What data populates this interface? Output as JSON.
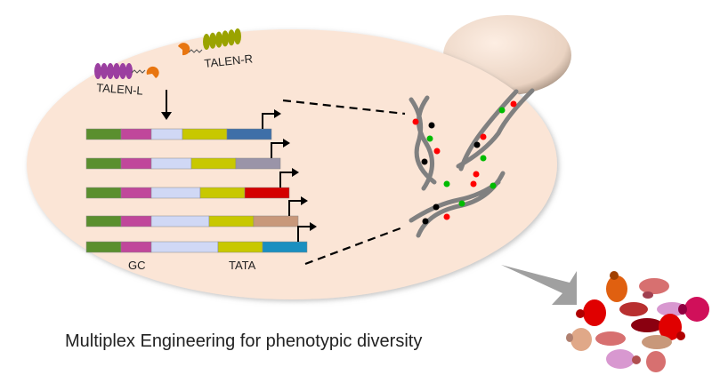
{
  "labels": {
    "talen_left": "TALEN-L",
    "talen_right": "TALEN-R",
    "gc": "GC",
    "tata": "TATA",
    "caption": "Multiplex Engineering for  phenotypic diversity"
  },
  "colors": {
    "cell": "#fbe5d6",
    "segments": [
      "#5a8f2e",
      "#c0479b",
      "#d0d8f5",
      "#c8c800"
    ],
    "row_end_colors": [
      "#3e6fa8",
      "#9a94a8",
      "#d40000",
      "#c8987a",
      "#1a8fc0"
    ],
    "talen_left": "#9b3fa0",
    "talen_right": "#9aa300",
    "nuclease": "#e87510"
  }
}
